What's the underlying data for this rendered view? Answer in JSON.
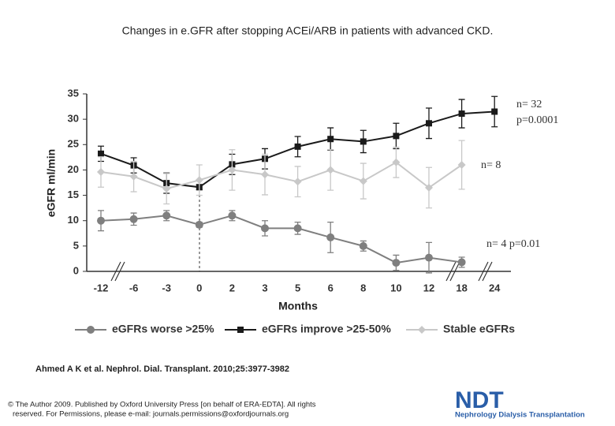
{
  "chart_data": {
    "type": "line",
    "title": "Changes in e.GFR after stopping ACEi/ARB in patients with advanced CKD.",
    "x_label": "Months",
    "y_label": "eGFR ml/min",
    "categories": [
      "-12",
      "-6",
      "-3",
      "0",
      "2",
      "3",
      "5",
      "6",
      "8",
      "10",
      "12",
      "18",
      "24"
    ],
    "ylim": [
      0,
      35
    ],
    "yticks": [
      0,
      5,
      10,
      15,
      20,
      25,
      30,
      35
    ],
    "series": [
      {
        "name": "eGFRs worse >25%",
        "color": "#7f7f7f",
        "marker": "circle",
        "values": [
          10,
          10.3,
          11,
          9.2,
          11,
          8.5,
          8.5,
          6.7,
          5,
          1.7,
          2.7,
          1.8,
          null
        ],
        "errors": [
          2,
          1.2,
          1,
          0.5,
          1,
          1.5,
          1.2,
          3,
          1,
          1.5,
          3,
          1,
          null
        ]
      },
      {
        "name": "eGFRs improve >25-50%",
        "color": "#1a1a1a",
        "marker": "square",
        "values": [
          23.2,
          20.9,
          17.4,
          16.6,
          21.1,
          22.2,
          24.6,
          26.1,
          25.6,
          26.7,
          29.2,
          31.1,
          31.5
        ],
        "errors": [
          1.5,
          1.5,
          2,
          0.5,
          2,
          2,
          2,
          2.2,
          2.2,
          2.5,
          3,
          2.8,
          3
        ]
      },
      {
        "name": "Stable eGFRs",
        "color": "#c8c8c8",
        "marker": "diamond",
        "values": [
          19.6,
          18.7,
          16.3,
          18,
          20,
          19.1,
          17.7,
          20,
          17.8,
          21.5,
          16.5,
          21,
          null
        ],
        "errors": [
          3,
          3,
          3,
          3,
          4,
          4,
          3,
          4,
          3.5,
          3,
          4,
          4.8,
          null
        ]
      }
    ],
    "annotations": [
      "n= 32",
      "p=0.0001",
      "n= 8",
      "n= 4 p=0.01"
    ]
  },
  "citation": "Ahmed A K et al. Nephrol. Dial. Transplant. 2010;25:3977-3982",
  "copyright": [
    "© The Author 2009. Published by Oxford University Press [on behalf of ERA-EDTA]. All rights",
    "reserved. For Permissions, please e-mail: journals.permissions@oxfordjournals.org"
  ],
  "logo": {
    "title": "NDT",
    "subtitle": "Nephrology Dialysis Transplantation"
  }
}
